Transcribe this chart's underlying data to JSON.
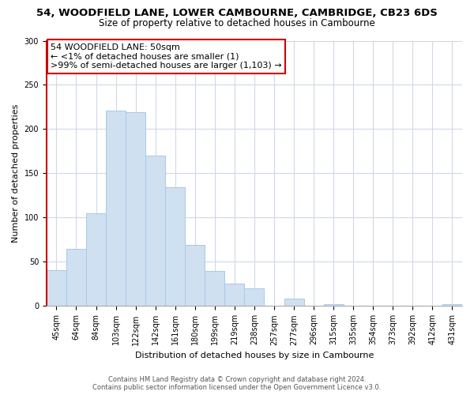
{
  "title": "54, WOODFIELD LANE, LOWER CAMBOURNE, CAMBRIDGE, CB23 6DS",
  "subtitle": "Size of property relative to detached houses in Cambourne",
  "xlabel": "Distribution of detached houses by size in Cambourne",
  "ylabel": "Number of detached properties",
  "bar_labels": [
    "45sqm",
    "64sqm",
    "84sqm",
    "103sqm",
    "122sqm",
    "142sqm",
    "161sqm",
    "180sqm",
    "199sqm",
    "219sqm",
    "238sqm",
    "257sqm",
    "277sqm",
    "296sqm",
    "315sqm",
    "335sqm",
    "354sqm",
    "373sqm",
    "392sqm",
    "412sqm",
    "431sqm"
  ],
  "bar_values": [
    41,
    65,
    105,
    221,
    219,
    170,
    134,
    69,
    40,
    25,
    20,
    0,
    8,
    0,
    2,
    0,
    0,
    0,
    0,
    0,
    2
  ],
  "bar_color": "#cfe0f0",
  "bar_edge_color": "#a8c8e8",
  "highlight_index": 0,
  "highlight_edge_color": "#cc0000",
  "ylim": [
    0,
    300
  ],
  "yticks": [
    0,
    50,
    100,
    150,
    200,
    250,
    300
  ],
  "annotation_line1": "54 WOODFIELD LANE: 50sqm",
  "annotation_line2": "← <1% of detached houses are smaller (1)",
  "annotation_line3": ">99% of semi-detached houses are larger (1,103) →",
  "annotation_box_edge_color": "#cc0000",
  "footer_line1": "Contains HM Land Registry data © Crown copyright and database right 2024.",
  "footer_line2": "Contains public sector information licensed under the Open Government Licence v3.0.",
  "background_color": "#ffffff",
  "grid_color": "#d0d8e8",
  "title_fontsize": 9.5,
  "subtitle_fontsize": 8.5,
  "ylabel_fontsize": 8,
  "xlabel_fontsize": 8,
  "tick_fontsize": 7,
  "annotation_fontsize": 8,
  "footer_fontsize": 6
}
